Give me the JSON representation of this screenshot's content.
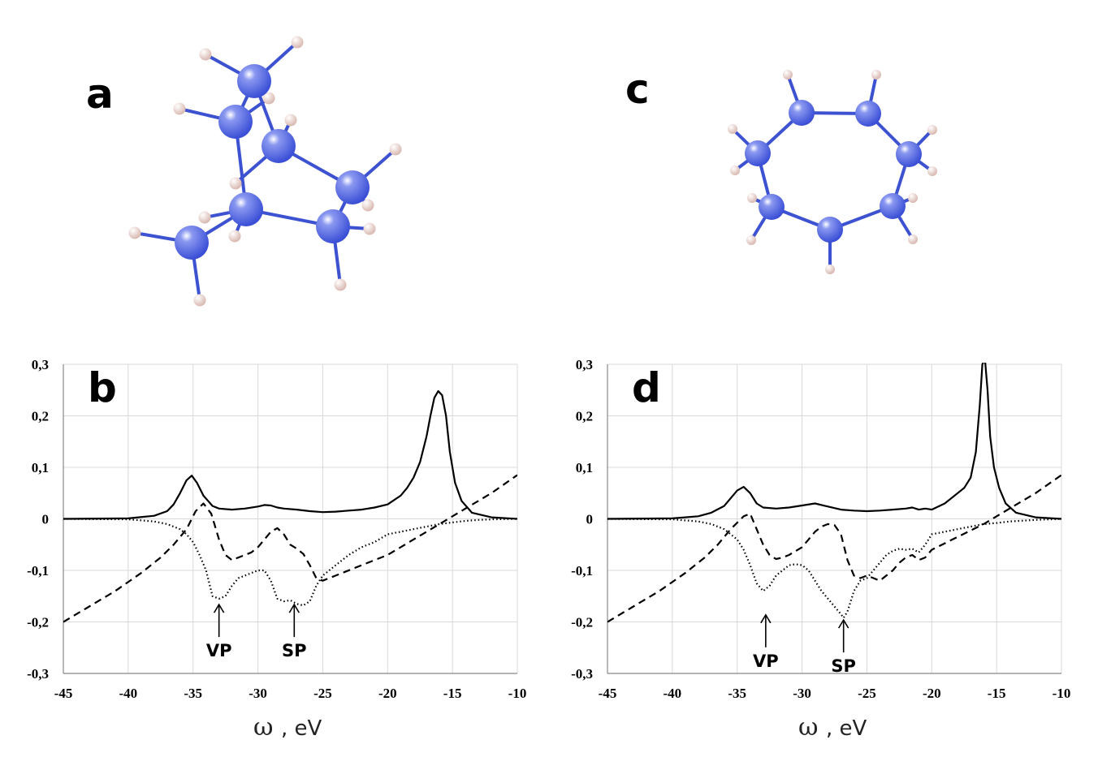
{
  "panels": {
    "a": {
      "label": "a"
    },
    "c": {
      "label": "c"
    }
  },
  "colors": {
    "atom": "#3a4fd6",
    "hydrogen": "#efd8d2",
    "bond": "#3d52d0",
    "grid": "#d9d9d9",
    "curve": "#000000"
  },
  "chart_data": [
    {
      "panel": "b",
      "type": "line",
      "xlabel_symbol": "ω",
      "xlabel_unit": ", eV",
      "xlim": [
        -45,
        -10
      ],
      "ylim": [
        -0.3,
        0.3
      ],
      "x_ticks": [
        "-45",
        "-40",
        "-35",
        "-30",
        "-25",
        "-20",
        "-15",
        "-10"
      ],
      "y_ticks": [
        "-0,3",
        "-0,2",
        "-0,1",
        "0",
        "0,1",
        "0,2",
        "0,3"
      ],
      "grid": true,
      "annotations": [
        {
          "text": "VP",
          "x": -33.0,
          "y": -0.16
        },
        {
          "text": "SP",
          "x": -27.2,
          "y": -0.16
        }
      ],
      "series": [
        {
          "style": "solid",
          "x": [
            -45,
            -40,
            -38,
            -37,
            -36.5,
            -36,
            -35.5,
            -35.1,
            -34.7,
            -34.2,
            -33.5,
            -33,
            -32,
            -31,
            -30,
            -29.5,
            -29,
            -28.5,
            -28,
            -27,
            -26,
            -25,
            -24,
            -23,
            -22,
            -21,
            -20,
            -19,
            -18.5,
            -18,
            -17.5,
            -17,
            -16.7,
            -16.4,
            -16.1,
            -15.8,
            -15.5,
            -15.2,
            -14.8,
            -14.3,
            -13.5,
            -12,
            -10
          ],
          "y": [
            0,
            0.001,
            0.006,
            0.015,
            0.028,
            0.05,
            0.075,
            0.084,
            0.07,
            0.045,
            0.025,
            0.02,
            0.018,
            0.02,
            0.024,
            0.027,
            0.026,
            0.022,
            0.02,
            0.018,
            0.015,
            0.013,
            0.014,
            0.016,
            0.018,
            0.022,
            0.028,
            0.045,
            0.06,
            0.08,
            0.11,
            0.16,
            0.2,
            0.235,
            0.248,
            0.24,
            0.2,
            0.13,
            0.07,
            0.035,
            0.012,
            0.003,
            0
          ]
        },
        {
          "style": "dashed",
          "x": [
            -45,
            -43,
            -41,
            -39,
            -37.5,
            -36.5,
            -35.5,
            -34.8,
            -34.2,
            -33.6,
            -33,
            -32.5,
            -32,
            -31.5,
            -31,
            -30.5,
            -30,
            -29.5,
            -29,
            -28.5,
            -28,
            -27.5,
            -27,
            -26.5,
            -26,
            -25.5,
            -25,
            -24.5,
            -24,
            -22,
            -20,
            -18,
            -16,
            -14,
            -12,
            -10
          ],
          "y": [
            -0.2,
            -0.17,
            -0.14,
            -0.105,
            -0.075,
            -0.05,
            -0.02,
            0.015,
            0.03,
            0.01,
            -0.04,
            -0.07,
            -0.08,
            -0.075,
            -0.07,
            -0.065,
            -0.055,
            -0.04,
            -0.025,
            -0.018,
            -0.03,
            -0.05,
            -0.058,
            -0.068,
            -0.09,
            -0.115,
            -0.12,
            -0.115,
            -0.11,
            -0.09,
            -0.07,
            -0.04,
            -0.01,
            0.02,
            0.05,
            0.085
          ]
        },
        {
          "style": "dotted",
          "x": [
            -45,
            -40,
            -38,
            -37,
            -36,
            -35.5,
            -35,
            -34.5,
            -34,
            -33.5,
            -33,
            -32.5,
            -32,
            -31.5,
            -31,
            -30.5,
            -30,
            -29.5,
            -29,
            -28.5,
            -28,
            -27.5,
            -27,
            -26.5,
            -26,
            -25.5,
            -25,
            -24,
            -23,
            -22,
            -21,
            -20,
            -19,
            -18,
            -17,
            -16,
            -15,
            -14,
            -13,
            -12,
            -10
          ],
          "y": [
            0,
            -0.001,
            -0.005,
            -0.01,
            -0.02,
            -0.03,
            -0.045,
            -0.07,
            -0.1,
            -0.15,
            -0.155,
            -0.15,
            -0.13,
            -0.115,
            -0.11,
            -0.105,
            -0.1,
            -0.1,
            -0.12,
            -0.155,
            -0.16,
            -0.158,
            -0.165,
            -0.168,
            -0.16,
            -0.13,
            -0.11,
            -0.09,
            -0.07,
            -0.055,
            -0.045,
            -0.03,
            -0.025,
            -0.02,
            -0.015,
            -0.01,
            -0.007,
            -0.004,
            -0.002,
            -0.001,
            0
          ]
        }
      ]
    },
    {
      "panel": "d",
      "type": "line",
      "xlabel_symbol": "ω",
      "xlabel_unit": ", eV",
      "xlim": [
        -45,
        -10
      ],
      "ylim": [
        -0.3,
        0.3
      ],
      "x_ticks": [
        "-45",
        "-40",
        "-35",
        "-30",
        "-25",
        "-20",
        "-15",
        "-10"
      ],
      "y_ticks": [
        "-0,3",
        "-0,2",
        "-0,1",
        "0",
        "0,1",
        "0,2",
        "0,3"
      ],
      "grid": true,
      "annotations": [
        {
          "text": "VP",
          "x": -32.8,
          "y": -0.18
        },
        {
          "text": "SP",
          "x": -26.8,
          "y": -0.19
        }
      ],
      "series": [
        {
          "style": "solid",
          "x": [
            -45,
            -40,
            -38,
            -37,
            -36,
            -35.5,
            -35,
            -34.5,
            -34,
            -33.5,
            -33,
            -32,
            -31,
            -30,
            -29,
            -28,
            -27,
            -26,
            -25,
            -24,
            -23,
            -22,
            -21.5,
            -21,
            -20.5,
            -20,
            -19,
            -18,
            -17.5,
            -17,
            -16.6,
            -16.3,
            -16.1,
            -15.9,
            -15.7,
            -15.5,
            -15.2,
            -14.8,
            -14.3,
            -13.5,
            -12,
            -10
          ],
          "y": [
            0,
            0.001,
            0.005,
            0.012,
            0.025,
            0.04,
            0.055,
            0.062,
            0.05,
            0.03,
            0.022,
            0.02,
            0.022,
            0.026,
            0.03,
            0.024,
            0.018,
            0.016,
            0.015,
            0.016,
            0.018,
            0.02,
            0.022,
            0.018,
            0.02,
            0.018,
            0.03,
            0.05,
            0.06,
            0.08,
            0.13,
            0.22,
            0.3,
            0.31,
            0.25,
            0.16,
            0.1,
            0.06,
            0.03,
            0.012,
            0.003,
            0
          ]
        },
        {
          "style": "dashed",
          "x": [
            -45,
            -43,
            -41,
            -39,
            -37.5,
            -36.5,
            -35.5,
            -34.5,
            -34,
            -33.5,
            -33,
            -32.5,
            -32,
            -31.5,
            -31,
            -30,
            -29.5,
            -29,
            -28.5,
            -28,
            -27.5,
            -27,
            -26.5,
            -26,
            -25.5,
            -25,
            -24.5,
            -24,
            -23.5,
            -23,
            -22.5,
            -22,
            -21.5,
            -21,
            -20.5,
            -20,
            -18,
            -16,
            -14,
            -12,
            -10
          ],
          "y": [
            -0.2,
            -0.17,
            -0.14,
            -0.105,
            -0.075,
            -0.05,
            -0.02,
            0.005,
            0.01,
            -0.02,
            -0.05,
            -0.07,
            -0.078,
            -0.075,
            -0.07,
            -0.055,
            -0.04,
            -0.025,
            -0.015,
            -0.01,
            -0.012,
            -0.03,
            -0.08,
            -0.11,
            -0.115,
            -0.11,
            -0.115,
            -0.12,
            -0.11,
            -0.1,
            -0.085,
            -0.075,
            -0.07,
            -0.08,
            -0.075,
            -0.06,
            -0.035,
            -0.01,
            0.02,
            0.05,
            0.085
          ]
        },
        {
          "style": "dotted",
          "x": [
            -45,
            -40,
            -38,
            -37,
            -36,
            -35.5,
            -35,
            -34.5,
            -34,
            -33.5,
            -33,
            -32.5,
            -32,
            -31.5,
            -31,
            -30.5,
            -30,
            -29.5,
            -29,
            -28.5,
            -28,
            -27.5,
            -27,
            -26.8,
            -26.5,
            -26,
            -25.5,
            -25,
            -24.5,
            -24,
            -23.5,
            -23,
            -22.5,
            -22,
            -21.5,
            -21,
            -20.5,
            -20,
            -19,
            -18,
            -16,
            -15,
            -14,
            -12,
            -10
          ],
          "y": [
            0,
            -0.001,
            -0.005,
            -0.01,
            -0.02,
            -0.03,
            -0.04,
            -0.06,
            -0.09,
            -0.125,
            -0.14,
            -0.13,
            -0.11,
            -0.1,
            -0.09,
            -0.088,
            -0.09,
            -0.1,
            -0.12,
            -0.14,
            -0.155,
            -0.17,
            -0.185,
            -0.192,
            -0.18,
            -0.14,
            -0.12,
            -0.115,
            -0.1,
            -0.085,
            -0.07,
            -0.062,
            -0.058,
            -0.06,
            -0.058,
            -0.065,
            -0.05,
            -0.03,
            -0.025,
            -0.02,
            -0.01,
            -0.008,
            -0.005,
            -0.002,
            0
          ]
        }
      ]
    }
  ]
}
